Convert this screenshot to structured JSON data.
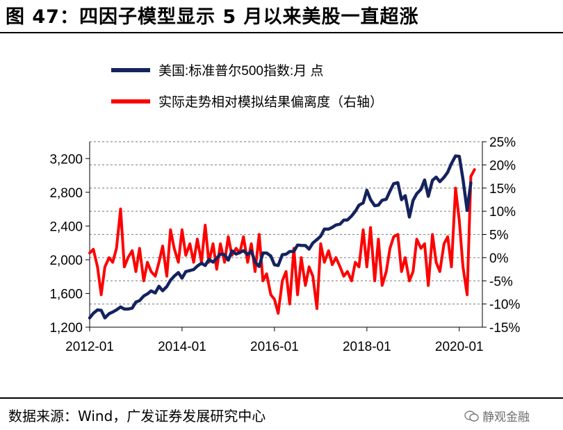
{
  "header": {
    "title": "图 47：四因子模型显示 5 月以来美股一直超涨"
  },
  "footer": {
    "source": "数据来源：Wind，广发证券发展研究中心",
    "watermark": "静观金融"
  },
  "colors": {
    "series1": "#14235e",
    "series2": "#ff0000",
    "grid": "#909090"
  },
  "chart_data": {
    "type": "line",
    "legend_position": "top-left",
    "grid": "horizontal dashed",
    "x_tick_labels": [
      "2012-01",
      "2014-01",
      "2016-01",
      "2018-01",
      "2020-01"
    ],
    "x_tick_values": [
      2012.0,
      2014.0,
      2016.0,
      2018.0,
      2020.0
    ],
    "xlim": [
      2012.0,
      2020.5
    ],
    "y_left": {
      "ticks": [
        "1,200",
        "1,600",
        "2,000",
        "2,400",
        "2,800",
        "3,200"
      ],
      "tick_values": [
        1200,
        1600,
        2000,
        2400,
        2800,
        3200
      ],
      "lim": [
        1200,
        3400
      ]
    },
    "y_right": {
      "ticks": [
        "-15%",
        "-10%",
        "-5%",
        "0%",
        "5%",
        "10%",
        "15%",
        "20%",
        "25%"
      ],
      "tick_values": [
        -15,
        -10,
        -5,
        0,
        5,
        10,
        15,
        20,
        25
      ],
      "lim": [
        -15,
        25
      ]
    },
    "series": [
      {
        "name": "美国:标准普尔500指数:月 点",
        "axis": "left",
        "color": "#14235e",
        "points": [
          [
            2012.0,
            1310
          ],
          [
            2012.08,
            1365
          ],
          [
            2012.17,
            1405
          ],
          [
            2012.25,
            1400
          ],
          [
            2012.33,
            1310
          ],
          [
            2012.42,
            1360
          ],
          [
            2012.5,
            1380
          ],
          [
            2012.58,
            1405
          ],
          [
            2012.67,
            1440
          ],
          [
            2012.75,
            1415
          ],
          [
            2012.83,
            1415
          ],
          [
            2012.92,
            1426
          ],
          [
            2013.0,
            1498
          ],
          [
            2013.08,
            1515
          ],
          [
            2013.17,
            1570
          ],
          [
            2013.25,
            1595
          ],
          [
            2013.33,
            1630
          ],
          [
            2013.42,
            1606
          ],
          [
            2013.5,
            1685
          ],
          [
            2013.58,
            1632
          ],
          [
            2013.67,
            1682
          ],
          [
            2013.75,
            1756
          ],
          [
            2013.83,
            1805
          ],
          [
            2013.92,
            1848
          ],
          [
            2014.0,
            1782
          ],
          [
            2014.08,
            1859
          ],
          [
            2014.17,
            1872
          ],
          [
            2014.25,
            1884
          ],
          [
            2014.33,
            1924
          ],
          [
            2014.42,
            1960
          ],
          [
            2014.5,
            1931
          ],
          [
            2014.58,
            2003
          ],
          [
            2014.67,
            1972
          ],
          [
            2014.75,
            2018
          ],
          [
            2014.83,
            2068
          ],
          [
            2014.92,
            2059
          ],
          [
            2015.0,
            1995
          ],
          [
            2015.08,
            2105
          ],
          [
            2015.17,
            2068
          ],
          [
            2015.25,
            2086
          ],
          [
            2015.33,
            2107
          ],
          [
            2015.42,
            2063
          ],
          [
            2015.5,
            2104
          ],
          [
            2015.58,
            1972
          ],
          [
            2015.67,
            1920
          ],
          [
            2015.75,
            2079
          ],
          [
            2015.83,
            2080
          ],
          [
            2015.92,
            2044
          ],
          [
            2016.0,
            1940
          ],
          [
            2016.08,
            1932
          ],
          [
            2016.17,
            2060
          ],
          [
            2016.25,
            2065
          ],
          [
            2016.33,
            2097
          ],
          [
            2016.42,
            2099
          ],
          [
            2016.5,
            2174
          ],
          [
            2016.58,
            2171
          ],
          [
            2016.67,
            2168
          ],
          [
            2016.75,
            2126
          ],
          [
            2016.83,
            2199
          ],
          [
            2016.92,
            2239
          ],
          [
            2017.0,
            2279
          ],
          [
            2017.08,
            2364
          ],
          [
            2017.17,
            2363
          ],
          [
            2017.25,
            2384
          ],
          [
            2017.33,
            2412
          ],
          [
            2017.42,
            2423
          ],
          [
            2017.5,
            2470
          ],
          [
            2017.58,
            2472
          ],
          [
            2017.67,
            2519
          ],
          [
            2017.75,
            2575
          ],
          [
            2017.83,
            2648
          ],
          [
            2017.92,
            2674
          ],
          [
            2018.0,
            2824
          ],
          [
            2018.08,
            2714
          ],
          [
            2018.17,
            2641
          ],
          [
            2018.25,
            2648
          ],
          [
            2018.33,
            2705
          ],
          [
            2018.42,
            2718
          ],
          [
            2018.5,
            2816
          ],
          [
            2018.58,
            2902
          ],
          [
            2018.67,
            2914
          ],
          [
            2018.75,
            2712
          ],
          [
            2018.83,
            2760
          ],
          [
            2018.92,
            2507
          ],
          [
            2019.0,
            2704
          ],
          [
            2019.08,
            2784
          ],
          [
            2019.17,
            2834
          ],
          [
            2019.25,
            2946
          ],
          [
            2019.33,
            2752
          ],
          [
            2019.42,
            2942
          ],
          [
            2019.5,
            2980
          ],
          [
            2019.58,
            2926
          ],
          [
            2019.67,
            2977
          ],
          [
            2019.75,
            3038
          ],
          [
            2019.83,
            3141
          ],
          [
            2019.92,
            3231
          ],
          [
            2020.0,
            3226
          ],
          [
            2020.08,
            2954
          ],
          [
            2020.17,
            2585
          ],
          [
            2020.25,
            2912
          ]
        ]
      },
      {
        "name": "实际走势相对模拟结果偏离度（右轴）",
        "axis": "right",
        "color": "#ff0000",
        "points": [
          [
            2012.0,
            1.0
          ],
          [
            2012.08,
            1.8
          ],
          [
            2012.17,
            -2.0
          ],
          [
            2012.25,
            -8.0
          ],
          [
            2012.33,
            -2.0
          ],
          [
            2012.42,
            0.0
          ],
          [
            2012.5,
            -1.0
          ],
          [
            2012.58,
            2.0
          ],
          [
            2012.67,
            10.5
          ],
          [
            2012.75,
            -2.0
          ],
          [
            2012.83,
            0.0
          ],
          [
            2012.92,
            1.5
          ],
          [
            2013.0,
            -3.0
          ],
          [
            2013.08,
            2.0
          ],
          [
            2013.17,
            -5.0
          ],
          [
            2013.25,
            -1.0
          ],
          [
            2013.33,
            -3.0
          ],
          [
            2013.42,
            -4.0
          ],
          [
            2013.5,
            -1.0
          ],
          [
            2013.58,
            2.5
          ],
          [
            2013.67,
            -4.0
          ],
          [
            2013.75,
            6.0
          ],
          [
            2013.83,
            2.0
          ],
          [
            2013.92,
            -1.0
          ],
          [
            2014.0,
            6.0
          ],
          [
            2014.08,
            0.5
          ],
          [
            2014.17,
            3.0
          ],
          [
            2014.25,
            -1.0
          ],
          [
            2014.33,
            4.0
          ],
          [
            2014.42,
            -1.0
          ],
          [
            2014.5,
            7.0
          ],
          [
            2014.58,
            -1.0
          ],
          [
            2014.67,
            3.0
          ],
          [
            2014.75,
            -2.5
          ],
          [
            2014.83,
            3.0
          ],
          [
            2014.92,
            -1.0
          ],
          [
            2015.0,
            4.5
          ],
          [
            2015.08,
            0.5
          ],
          [
            2015.17,
            2.0
          ],
          [
            2015.25,
            1.0
          ],
          [
            2015.33,
            4.5
          ],
          [
            2015.42,
            -1.0
          ],
          [
            2015.5,
            3.0
          ],
          [
            2015.58,
            -3.0
          ],
          [
            2015.67,
            5.0
          ],
          [
            2015.75,
            -5.0
          ],
          [
            2015.83,
            -3.5
          ],
          [
            2015.92,
            -8.0
          ],
          [
            2016.0,
            -9.0
          ],
          [
            2016.08,
            -12.0
          ],
          [
            2016.17,
            -5.0
          ],
          [
            2016.25,
            -3.0
          ],
          [
            2016.33,
            -10.0
          ],
          [
            2016.42,
            2.0
          ],
          [
            2016.5,
            -8.0
          ],
          [
            2016.58,
            0.0
          ],
          [
            2016.67,
            -6.0
          ],
          [
            2016.75,
            -2.0
          ],
          [
            2016.83,
            -4.0
          ],
          [
            2016.92,
            -11.0
          ],
          [
            2017.0,
            3.0
          ],
          [
            2017.08,
            -1.0
          ],
          [
            2017.17,
            1.5
          ],
          [
            2017.25,
            -1.5
          ],
          [
            2017.33,
            0.0
          ],
          [
            2017.42,
            -2.0
          ],
          [
            2017.5,
            -4.0
          ],
          [
            2017.58,
            -3.0
          ],
          [
            2017.67,
            -5.0
          ],
          [
            2017.75,
            -1.0
          ],
          [
            2017.83,
            -2.0
          ],
          [
            2017.92,
            6.0
          ],
          [
            2018.0,
            -2.0
          ],
          [
            2018.08,
            6.5
          ],
          [
            2018.17,
            -5.0
          ],
          [
            2018.25,
            4.0
          ],
          [
            2018.33,
            -6.0
          ],
          [
            2018.42,
            -3.0
          ],
          [
            2018.5,
            2.0
          ],
          [
            2018.58,
            4.5
          ],
          [
            2018.67,
            5.0
          ],
          [
            2018.75,
            -3.0
          ],
          [
            2018.83,
            0.0
          ],
          [
            2018.92,
            -5.0
          ],
          [
            2019.0,
            -3.0
          ],
          [
            2019.08,
            4.0
          ],
          [
            2019.17,
            2.0
          ],
          [
            2019.25,
            3.0
          ],
          [
            2019.33,
            -6.0
          ],
          [
            2019.42,
            5.0
          ],
          [
            2019.5,
            -1.0
          ],
          [
            2019.58,
            -3.0
          ],
          [
            2019.67,
            3.0
          ],
          [
            2019.75,
            4.5
          ],
          [
            2019.83,
            -2.0
          ],
          [
            2019.92,
            15.0
          ],
          [
            2020.0,
            8.0
          ],
          [
            2020.08,
            -2.0
          ],
          [
            2020.17,
            -8.0
          ],
          [
            2020.25,
            17.5
          ],
          [
            2020.33,
            19.0
          ]
        ]
      }
    ]
  }
}
